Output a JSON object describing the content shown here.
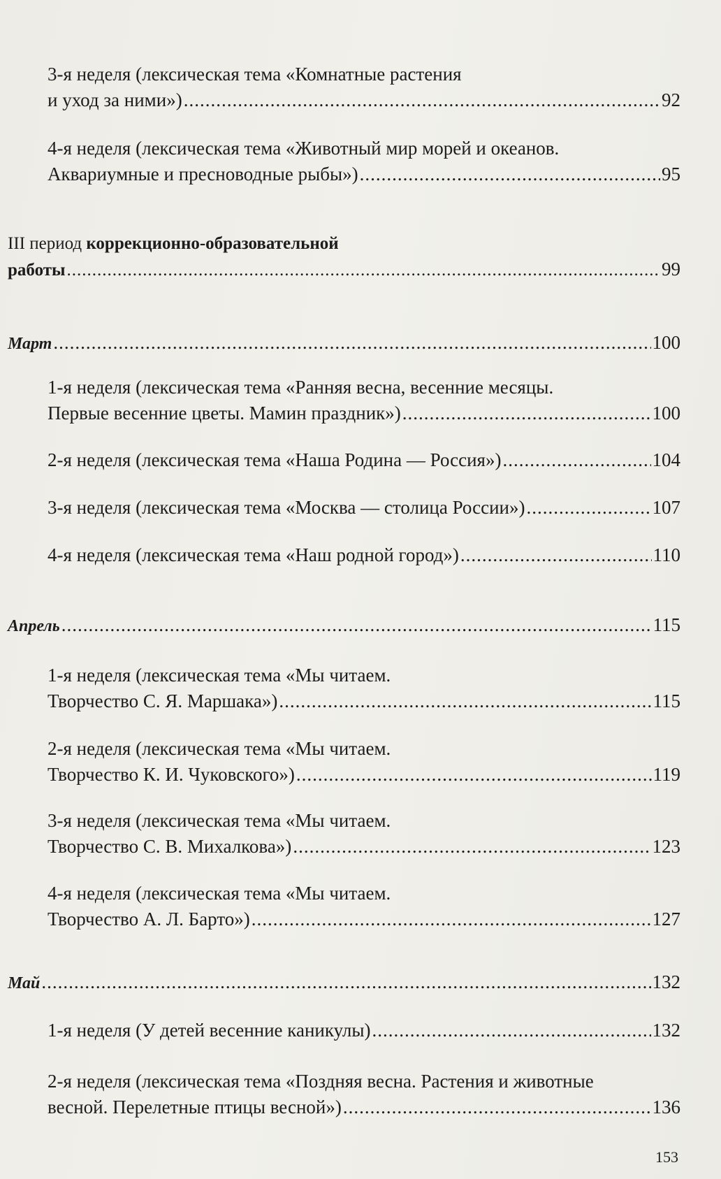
{
  "entries": [
    {
      "lines": [
        "3-я неделя (лексическая тема «Комнатные растения",
        "и уход за ними»)"
      ],
      "page": "92"
    },
    {
      "lines": [
        "4-я неделя (лексическая тема «Животный мир морей и океанов.",
        "Аквариумные и пресноводные рыбы»)"
      ],
      "page": "95"
    },
    {
      "lines_prefix": "III период ",
      "lines": [
        "коррекционно-образовательной",
        "работы"
      ],
      "page": "99"
    },
    {
      "lines": [
        "Март"
      ],
      "page": "100"
    },
    {
      "lines": [
        "1-я неделя (лексическая тема «Ранняя весна, весенние месяцы.",
        "Первые весенние цветы. Мамин праздник»)"
      ],
      "page": "100"
    },
    {
      "lines": [
        "2-я неделя (лексическая тема «Наша Родина — Россия»)"
      ],
      "page": "104"
    },
    {
      "lines": [
        "3-я неделя (лексическая тема «Москва — столица России»)"
      ],
      "page": "107"
    },
    {
      "lines": [
        "4-я неделя (лексическая тема «Наш родной город»)"
      ],
      "page": "110"
    },
    {
      "lines": [
        "Апрель"
      ],
      "page": "115"
    },
    {
      "lines": [
        "1-я неделя (лексическая тема «Мы читаем.",
        "Творчество С. Я. Маршака»)"
      ],
      "page": "115"
    },
    {
      "lines": [
        "2-я неделя (лексическая тема «Мы читаем.",
        "Творчество К. И. Чуковского»)"
      ],
      "page": "119"
    },
    {
      "lines": [
        "3-я неделя (лексическая тема «Мы читаем.",
        "Творчество С. В. Михалкова»)"
      ],
      "page": "123"
    },
    {
      "lines": [
        "4-я неделя (лексическая тема «Мы читаем.",
        "Творчество А. Л. Барто»)"
      ],
      "page": "127"
    },
    {
      "lines": [
        "Май"
      ],
      "page": "132"
    },
    {
      "lines": [
        "1-я неделя (У детей весенние каникулы)"
      ],
      "page": "132"
    },
    {
      "lines": [
        "2-я неделя (лексическая тема «Поздняя весна. Растения и животные",
        "весной. Перелетные птицы весной»)"
      ],
      "page": "136"
    }
  ],
  "page_number": "153"
}
